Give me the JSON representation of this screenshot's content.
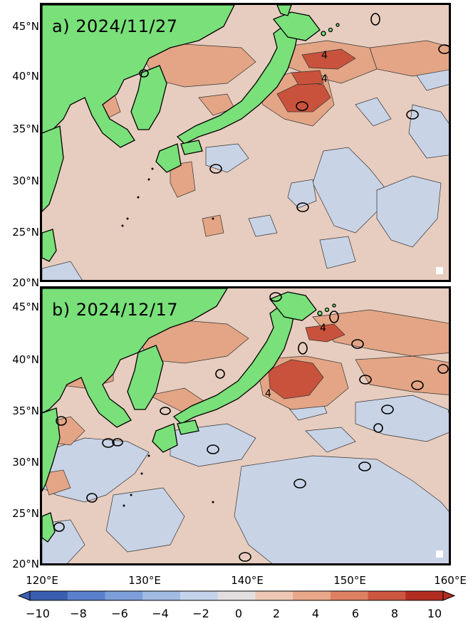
{
  "panels": [
    {
      "id": "a",
      "title": "a) 2024/11/27"
    },
    {
      "id": "b",
      "title": "b) 2024/12/17"
    }
  ],
  "axes": {
    "lat_ticks": [
      "45°N",
      "40°N",
      "35°N",
      "30°N",
      "25°N",
      "20°N"
    ],
    "lon_ticks": [
      "120°E",
      "130°E",
      "140°E",
      "150°E",
      "160°E"
    ]
  },
  "contour_labels": {
    "a": [
      "4",
      "4"
    ],
    "b": [
      "4",
      "4"
    ]
  },
  "colorbar": {
    "ticks": [
      "−10",
      "−8",
      "−6",
      "−4",
      "−2",
      "0",
      "2",
      "4",
      "6",
      "8",
      "10"
    ],
    "range": [
      -10,
      10
    ],
    "colors": [
      "#3a5fb0",
      "#5a7fcb",
      "#7d9ed8",
      "#a2bbe3",
      "#c4d3ea",
      "#e3dfe0",
      "#eec8b4",
      "#e9a88a",
      "#de8162",
      "#cc5640",
      "#b22d22"
    ]
  },
  "colors": {
    "land": "#7ae07a",
    "ocean_neutral": "#e7cdbf",
    "negative_anomaly": "#c9d3e6",
    "positive_anomaly": "#e0a085",
    "strong_positive": "#c9523c"
  }
}
